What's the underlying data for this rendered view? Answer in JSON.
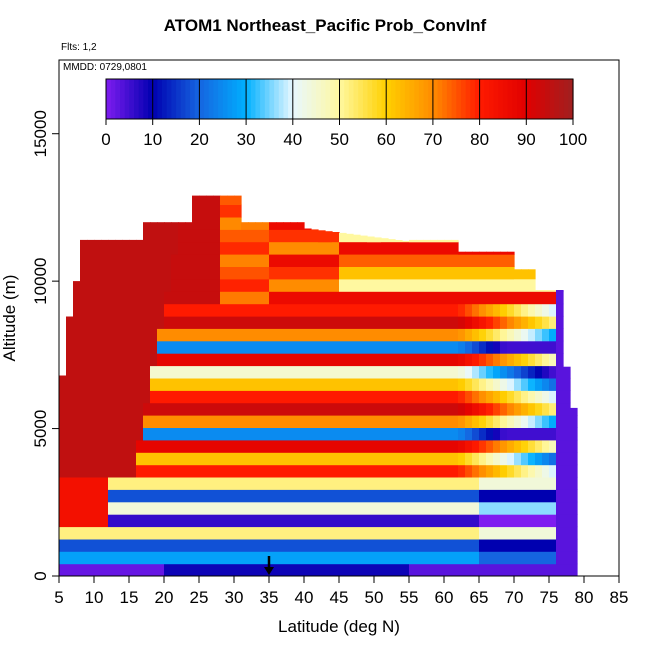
{
  "title": "ATOM1 Northeast_Pacific Prob_ConvInf",
  "flights_label": "Flts: 1,2",
  "dates_label": "MMDD: 0729,0801",
  "chart_data": {
    "type": "heatmap",
    "title": "ATOM1 Northeast_Pacific Prob_ConvInf",
    "xlabel": "Latitude (deg N)",
    "ylabel": "Altitude (m)",
    "xlim": [
      5,
      85
    ],
    "ylim": [
      0,
      17500
    ],
    "x_ticks": [
      5,
      10,
      15,
      20,
      25,
      30,
      35,
      40,
      45,
      50,
      55,
      60,
      65,
      70,
      75,
      80,
      85
    ],
    "y_ticks": [
      0,
      5000,
      10000,
      15000
    ],
    "colorbar": {
      "range": [
        0,
        100
      ],
      "ticks": [
        0,
        10,
        20,
        30,
        40,
        50,
        60,
        70,
        80,
        90,
        100
      ],
      "stops": [
        "#7f1cf0",
        "#0000b0",
        "#1565e0",
        "#00b0ff",
        "#e8f8ff",
        "#fff8a0",
        "#ffd000",
        "#ff8c00",
        "#ff1a00",
        "#e00000",
        "#a02020"
      ]
    },
    "marker": {
      "x": 35,
      "y": 0
    },
    "grid": false,
    "legend": "colorbar-top"
  }
}
